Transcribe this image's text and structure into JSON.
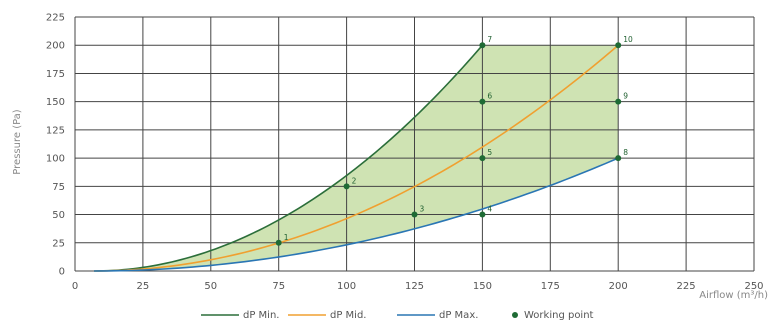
{
  "chart_data": {
    "type": "line",
    "title": "",
    "xlabel": "Airflow (m³/h)",
    "ylabel": "Pressure (Pa)",
    "xlim": [
      0,
      250
    ],
    "ylim": [
      0,
      225
    ],
    "x_ticks": [
      0,
      25,
      50,
      75,
      100,
      125,
      150,
      175,
      200,
      225,
      250
    ],
    "y_ticks": [
      0,
      25,
      50,
      75,
      100,
      125,
      150,
      175,
      200,
      225
    ],
    "grid": true,
    "legend_position": "bottom",
    "shaded_region": {
      "between": [
        "dP Min.",
        "dP Max."
      ],
      "color": "#cfe3b3"
    },
    "series": [
      {
        "name": "dP Min.",
        "color": "#2b6e3a",
        "curve": "quadratic",
        "x_range": [
          7,
          150
        ],
        "end": [
          150,
          200
        ]
      },
      {
        "name": "dP Mid.",
        "color": "#f0a030",
        "curve": "quadratic",
        "x_range": [
          7,
          200
        ],
        "end": [
          200,
          200
        ]
      },
      {
        "name": "dP Max.",
        "color": "#2a76b4",
        "curve": "quadratic",
        "x_range": [
          7,
          200
        ],
        "end": [
          200,
          100
        ]
      }
    ],
    "working_points": {
      "name": "Working point",
      "color": "#1f6b35",
      "points": [
        {
          "label": "1",
          "x": 75,
          "y": 25
        },
        {
          "label": "2",
          "x": 100,
          "y": 75
        },
        {
          "label": "3",
          "x": 125,
          "y": 50
        },
        {
          "label": "4",
          "x": 150,
          "y": 50
        },
        {
          "label": "5",
          "x": 150,
          "y": 100
        },
        {
          "label": "6",
          "x": 150,
          "y": 150
        },
        {
          "label": "7",
          "x": 150,
          "y": 200
        },
        {
          "label": "8",
          "x": 200,
          "y": 100
        },
        {
          "label": "9",
          "x": 200,
          "y": 150
        },
        {
          "label": "10",
          "x": 200,
          "y": 200
        }
      ]
    }
  }
}
